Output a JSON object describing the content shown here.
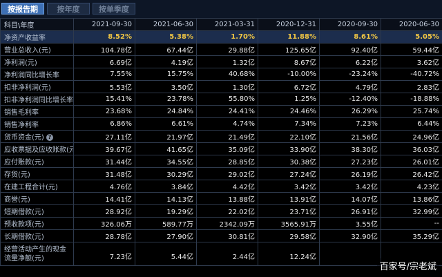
{
  "tabs": [
    {
      "label": "按报告期",
      "active": true
    },
    {
      "label": "按年度",
      "active": false
    },
    {
      "label": "按单季度",
      "active": false
    }
  ],
  "columns": [
    "科目\\年度",
    "2021-09-30",
    "2021-06-30",
    "2021-03-31",
    "2020-12-31",
    "2020-09-30",
    "2020-06-30"
  ],
  "rows": [
    {
      "label": "净资产收益率",
      "values": [
        "8.52%",
        "5.38%",
        "1.70%",
        "11.88%",
        "8.61%",
        "5.05%"
      ]
    },
    {
      "label": "营业总收入(元)",
      "values": [
        "104.78亿",
        "67.44亿",
        "29.88亿",
        "125.65亿",
        "92.40亿",
        "59.44亿"
      ]
    },
    {
      "label": "净利润(元)",
      "values": [
        "6.69亿",
        "4.19亿",
        "1.32亿",
        "8.67亿",
        "6.22亿",
        "3.62亿"
      ]
    },
    {
      "label": "净利润同比增长率",
      "values": [
        "7.55%",
        "15.75%",
        "40.68%",
        "-10.00%",
        "-23.24%",
        "-40.72%"
      ]
    },
    {
      "label": "扣非净利润(元)",
      "values": [
        "5.53亿",
        "3.50亿",
        "1.30亿",
        "6.72亿",
        "4.79亿",
        "2.83亿"
      ]
    },
    {
      "label": "扣非净利润同比增长率",
      "values": [
        "15.41%",
        "23.78%",
        "55.80%",
        "1.25%",
        "-12.40%",
        "-18.88%"
      ]
    },
    {
      "label": "销售毛利率",
      "values": [
        "23.68%",
        "24.84%",
        "24.41%",
        "24.46%",
        "26.29%",
        "25.74%"
      ]
    },
    {
      "label": "销售净利率",
      "values": [
        "6.86%",
        "6.61%",
        "4.74%",
        "7.34%",
        "7.23%",
        "6.44%"
      ]
    },
    {
      "label": "货币资金(元)",
      "values": [
        "27.11亿",
        "21.97亿",
        "21.49亿",
        "22.10亿",
        "21.56亿",
        "24.96亿"
      ]
    },
    {
      "label": "应收票据及应收账款(元)",
      "values": [
        "39.67亿",
        "41.65亿",
        "35.09亿",
        "33.90亿",
        "38.30亿",
        "36.03亿"
      ]
    },
    {
      "label": "应付账款(元)",
      "values": [
        "31.44亿",
        "34.55亿",
        "28.85亿",
        "30.38亿",
        "27.23亿",
        "26.01亿"
      ]
    },
    {
      "label": "存货(元)",
      "values": [
        "31.48亿",
        "30.29亿",
        "29.02亿",
        "27.24亿",
        "26.19亿",
        "26.42亿"
      ]
    },
    {
      "label": "在建工程合计(元)",
      "values": [
        "4.76亿",
        "3.84亿",
        "4.42亿",
        "3.42亿",
        "3.42亿",
        "4.23亿"
      ]
    },
    {
      "label": "商誉(元)",
      "values": [
        "14.41亿",
        "14.13亿",
        "13.88亿",
        "13.91亿",
        "14.07亿",
        "13.86亿"
      ]
    },
    {
      "label": "短期借款(元)",
      "values": [
        "28.92亿",
        "19.29亿",
        "22.02亿",
        "23.71亿",
        "26.91亿",
        "32.99亿"
      ]
    },
    {
      "label": "预收款项(元)",
      "values": [
        "326.06万",
        "589.77万",
        "2342.09万",
        "3565.91万",
        "3.55亿",
        "--"
      ]
    },
    {
      "label": "长期借款(元)",
      "values": [
        "28.78亿",
        "27.90亿",
        "30.81亿",
        "29.58亿",
        "32.90亿",
        "35.29亿"
      ]
    },
    {
      "label": "经营活动产生的现金流量净额(元)",
      "values": [
        "7.23亿",
        "5.44亿",
        "2.44亿",
        "12.24亿",
        "",
        ""
      ]
    }
  ],
  "help_icon": "question-icon",
  "watermark": "百家号/宗老斌",
  "colors": {
    "highlight": "#f2c744",
    "active_tab": "#3d6fb4",
    "background": "#000000"
  }
}
